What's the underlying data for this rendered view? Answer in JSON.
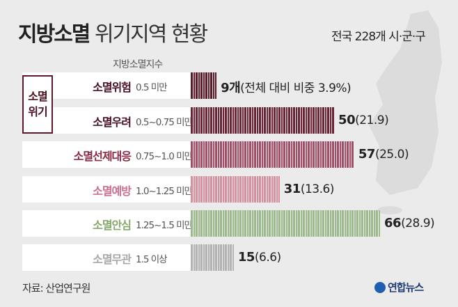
{
  "title": {
    "bold": "지방소멸",
    "light": "위기지역 현황"
  },
  "subtitle": "전국 228개 시·군·구",
  "column_header": "지방소멸지수",
  "group_label": {
    "line1": "소멸",
    "line2": "위기"
  },
  "source": "자료: 산업연구원",
  "logo": "연합뉴스",
  "chart_data": {
    "type": "bar",
    "orientation": "horizontal",
    "categories": [
      "소멸위험",
      "소멸우려",
      "소멸선제대응",
      "소멸예방",
      "소멸안심",
      "소멸무관"
    ],
    "ranges": [
      "0.5 미만",
      "0.5~0.75 미만",
      "0.75~1.0 미만",
      "1.0~1.25 미만",
      "1.25~1.5 미만",
      "1.5 이상"
    ],
    "values": [
      9,
      50,
      57,
      31,
      66,
      15
    ],
    "value_labels": [
      "9개",
      "50",
      "57",
      "31",
      "66",
      "15"
    ],
    "share_labels": [
      "(전체 대비 비중 3.9%)",
      "(21.9)",
      "(25.0)",
      "(13.6)",
      "(28.9)",
      "(6.6)"
    ],
    "shares_percent": [
      3.9,
      21.9,
      25.0,
      13.6,
      28.9,
      6.6
    ],
    "bar_colors": [
      "#5a1a2a",
      "#6b2434",
      "#a44d66",
      "#d8909f",
      "#9dba8c",
      "#b3b3b3"
    ],
    "label_colors": [
      "#4a1020",
      "#4a1020",
      "#8a2a45",
      "#cf6f8c",
      "#86a86a",
      "#a8a8a8"
    ],
    "xlim": [
      0,
      70
    ]
  }
}
